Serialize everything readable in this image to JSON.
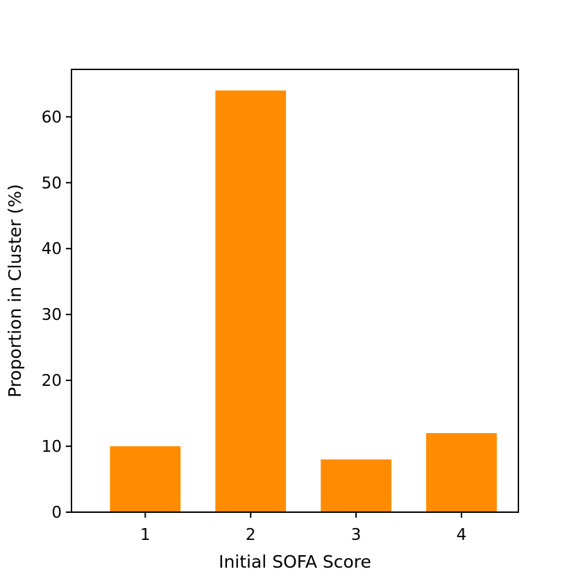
{
  "chart_data": {
    "type": "bar",
    "title": "",
    "xlabel": "Initial SOFA Score",
    "ylabel": "Proportion in Cluster (%)",
    "categories": [
      "1",
      "2",
      "3",
      "4"
    ],
    "values": [
      10,
      64,
      8,
      12
    ],
    "ylim": [
      0,
      67.2
    ],
    "yticks": [
      0,
      10,
      20,
      30,
      40,
      50,
      60
    ],
    "grid": false,
    "legend": "none",
    "colors": {
      "bar": "#ff8c00",
      "axis": "#000000"
    }
  }
}
